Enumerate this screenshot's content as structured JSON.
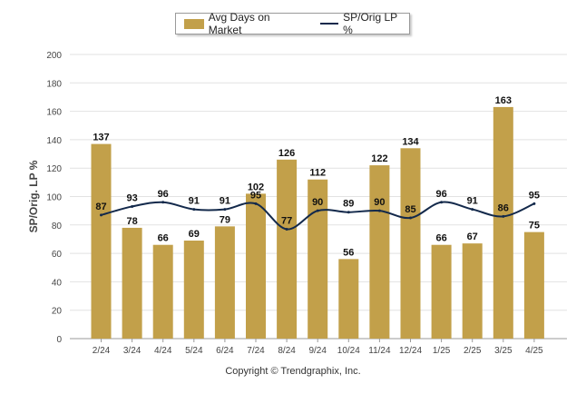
{
  "legend": {
    "bar_label": "Avg Days on Market",
    "line_label": "SP/Orig LP %"
  },
  "copyright": "Copyright © Trendgraphix, Inc.",
  "chart_data": {
    "type": "bar",
    "ylabel": "SP/Orig. LP %",
    "xlabel": "",
    "title": "",
    "ylim": [
      0,
      200
    ],
    "yticks": [
      0,
      20,
      40,
      60,
      80,
      100,
      120,
      140,
      160,
      180,
      200
    ],
    "grid": true,
    "legend_position": "top-center",
    "categories": [
      "2/24",
      "3/24",
      "4/24",
      "5/24",
      "6/24",
      "7/24",
      "8/24",
      "9/24",
      "10/24",
      "11/24",
      "12/24",
      "1/25",
      "2/25",
      "3/25",
      "4/25"
    ],
    "series": [
      {
        "name": "Avg Days on Market",
        "kind": "bar",
        "color": "#C2A04A",
        "values": [
          137,
          78,
          66,
          69,
          79,
          102,
          126,
          112,
          56,
          122,
          134,
          66,
          67,
          163,
          75
        ]
      },
      {
        "name": "SP/Orig LP %",
        "kind": "line",
        "color": "#13294B",
        "values": [
          87,
          93,
          96,
          91,
          91,
          95,
          77,
          90,
          89,
          90,
          85,
          96,
          91,
          86,
          95
        ]
      }
    ]
  }
}
